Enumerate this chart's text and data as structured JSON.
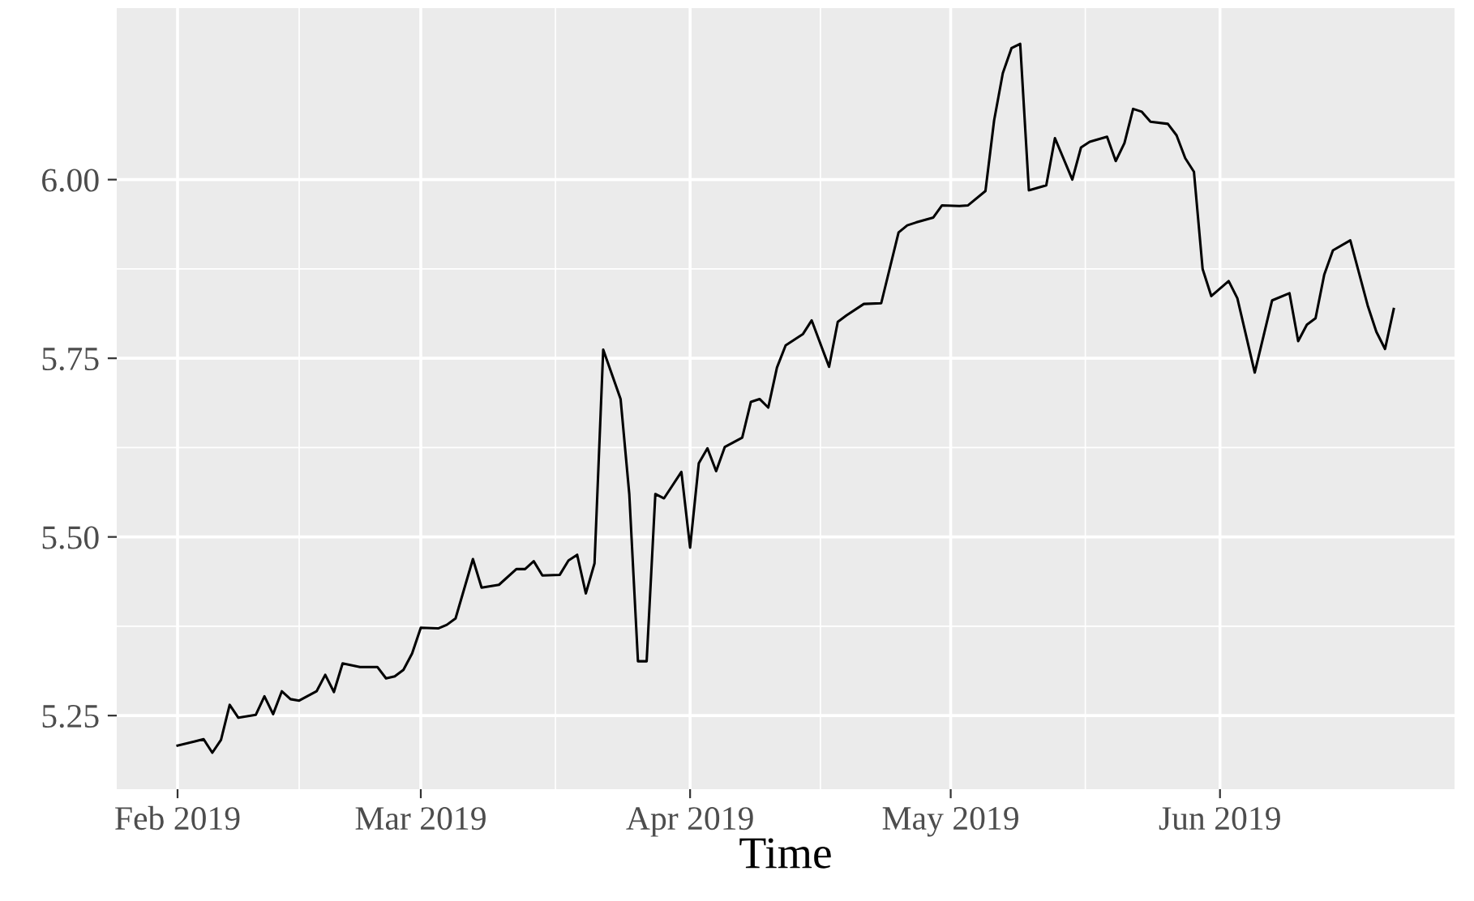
{
  "chart_data": {
    "type": "line",
    "xlabel": "Time",
    "x": [
      "2019-02-01",
      "2019-02-03",
      "2019-02-04",
      "2019-02-05",
      "2019-02-06",
      "2019-02-07",
      "2019-02-08",
      "2019-02-10",
      "2019-02-11",
      "2019-02-12",
      "2019-02-13",
      "2019-02-14",
      "2019-02-15",
      "2019-02-17",
      "2019-02-18",
      "2019-02-19",
      "2019-02-20",
      "2019-02-22",
      "2019-02-24",
      "2019-02-25",
      "2019-02-26",
      "2019-02-27",
      "2019-02-28",
      "2019-03-01",
      "2019-03-03",
      "2019-03-04",
      "2019-03-05",
      "2019-03-07",
      "2019-03-08",
      "2019-03-10",
      "2019-03-12",
      "2019-03-13",
      "2019-03-14",
      "2019-03-15",
      "2019-03-17",
      "2019-03-18",
      "2019-03-19",
      "2019-03-20",
      "2019-03-21",
      "2019-03-22",
      "2019-03-24",
      "2019-03-25",
      "2019-03-26",
      "2019-03-27",
      "2019-03-28",
      "2019-03-29",
      "2019-03-31",
      "2019-04-01",
      "2019-04-02",
      "2019-04-03",
      "2019-04-04",
      "2019-04-05",
      "2019-04-07",
      "2019-04-08",
      "2019-04-09",
      "2019-04-10",
      "2019-04-11",
      "2019-04-12",
      "2019-04-14",
      "2019-04-15",
      "2019-04-17",
      "2019-04-18",
      "2019-04-19",
      "2019-04-21",
      "2019-04-23",
      "2019-04-25",
      "2019-04-26",
      "2019-04-27",
      "2019-04-29",
      "2019-04-30",
      "2019-05-02",
      "2019-05-03",
      "2019-05-05",
      "2019-05-06",
      "2019-05-07",
      "2019-05-08",
      "2019-05-09",
      "2019-05-10",
      "2019-05-12",
      "2019-05-13",
      "2019-05-15",
      "2019-05-16",
      "2019-05-17",
      "2019-05-19",
      "2019-05-20",
      "2019-05-21",
      "2019-05-22",
      "2019-05-23",
      "2019-05-24",
      "2019-05-26",
      "2019-05-27",
      "2019-05-28",
      "2019-05-29",
      "2019-05-30",
      "2019-05-31",
      "2019-06-02",
      "2019-06-03",
      "2019-06-05",
      "2019-06-07",
      "2019-06-09",
      "2019-06-10",
      "2019-06-11",
      "2019-06-12",
      "2019-06-13",
      "2019-06-14",
      "2019-06-16",
      "2019-06-18",
      "2019-06-19",
      "2019-06-20",
      "2019-06-21"
    ],
    "series": [
      {
        "color": "#000000",
        "values": [
          5.208,
          5.214,
          5.217,
          5.198,
          5.216,
          5.265,
          5.247,
          5.251,
          5.277,
          5.252,
          5.284,
          5.273,
          5.271,
          5.284,
          5.307,
          5.283,
          5.323,
          5.318,
          5.318,
          5.302,
          5.305,
          5.314,
          5.337,
          5.373,
          5.372,
          5.377,
          5.386,
          5.469,
          5.429,
          5.433,
          5.455,
          5.455,
          5.466,
          5.446,
          5.447,
          5.467,
          5.475,
          5.421,
          5.463,
          5.762,
          5.693,
          5.56,
          5.326,
          5.326,
          5.56,
          5.554,
          5.591,
          5.485,
          5.603,
          5.624,
          5.592,
          5.626,
          5.639,
          5.689,
          5.693,
          5.681,
          5.737,
          5.768,
          5.784,
          5.803,
          5.738,
          5.801,
          5.81,
          5.826,
          5.827,
          5.926,
          5.936,
          5.94,
          5.947,
          5.964,
          5.963,
          5.964,
          5.984,
          6.083,
          6.149,
          6.184,
          6.19,
          5.985,
          5.992,
          6.058,
          6.0,
          6.045,
          6.053,
          6.06,
          6.026,
          6.051,
          6.099,
          6.095,
          6.081,
          6.078,
          6.062,
          6.03,
          6.011,
          5.875,
          5.837,
          5.858,
          5.834,
          5.73,
          5.831,
          5.841,
          5.774,
          5.797,
          5.806,
          5.867,
          5.901,
          5.915,
          5.824,
          5.787,
          5.763,
          5.819
        ]
      }
    ],
    "xlim": [
      "2019-01-25",
      "2019-06-28"
    ],
    "xticks": [
      {
        "value": "2019-02-01",
        "label": "Feb 2019"
      },
      {
        "value": "2019-03-01",
        "label": "Mar 2019"
      },
      {
        "value": "2019-04-01",
        "label": "Apr 2019"
      },
      {
        "value": "2019-05-01",
        "label": "May 2019"
      },
      {
        "value": "2019-06-01",
        "label": "Jun 2019"
      }
    ],
    "ylim": [
      5.147,
      6.24
    ],
    "yticks": [
      5.25,
      {
        "value": 5.5,
        "label": "5.50"
      },
      5.75,
      {
        "value": 6.0,
        "label": "6.00"
      }
    ],
    "grid": true,
    "line_style": "solid"
  }
}
